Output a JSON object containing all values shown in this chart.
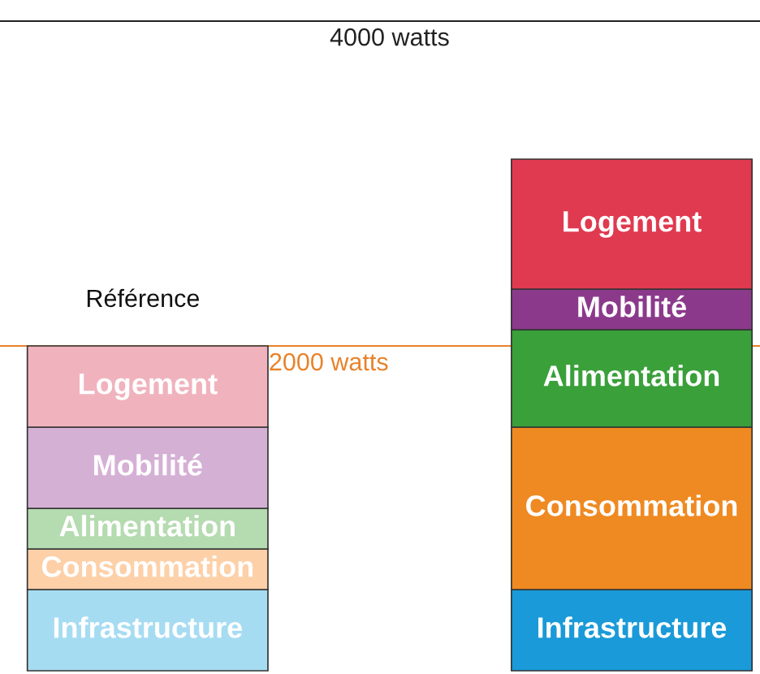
{
  "chart_data": {
    "type": "bar",
    "stacked": true,
    "categories": [
      "Référence",
      null
    ],
    "ylim": [
      -20,
      4130
    ],
    "series": [
      {
        "name": "Infrastructure",
        "colors": [
          "#a6dcf2",
          "#1a9ad8"
        ],
        "values": [
          500,
          500
        ]
      },
      {
        "name": "Consommation",
        "colors": [
          "#fdd0a8",
          "#ef8a22"
        ],
        "values": [
          250,
          1000
        ]
      },
      {
        "name": "Alimentation",
        "colors": [
          "#b5dbb0",
          "#3aa03a"
        ],
        "values": [
          250,
          600
        ]
      },
      {
        "name": "Mobilité",
        "colors": [
          "#d5b0d5",
          "#8b3a8b"
        ],
        "values": [
          500,
          250
        ]
      },
      {
        "name": "Logement",
        "colors": [
          "#f0b3bd",
          "#e03a50"
        ],
        "values": [
          500,
          800
        ]
      }
    ],
    "ref_lines": [
      {
        "axis": "y",
        "value": 4000,
        "label": "4000 watts",
        "color": "#222222"
      },
      {
        "axis": "y",
        "value": 2000,
        "label": "2000 watts",
        "color": "#e8822a"
      }
    ]
  }
}
